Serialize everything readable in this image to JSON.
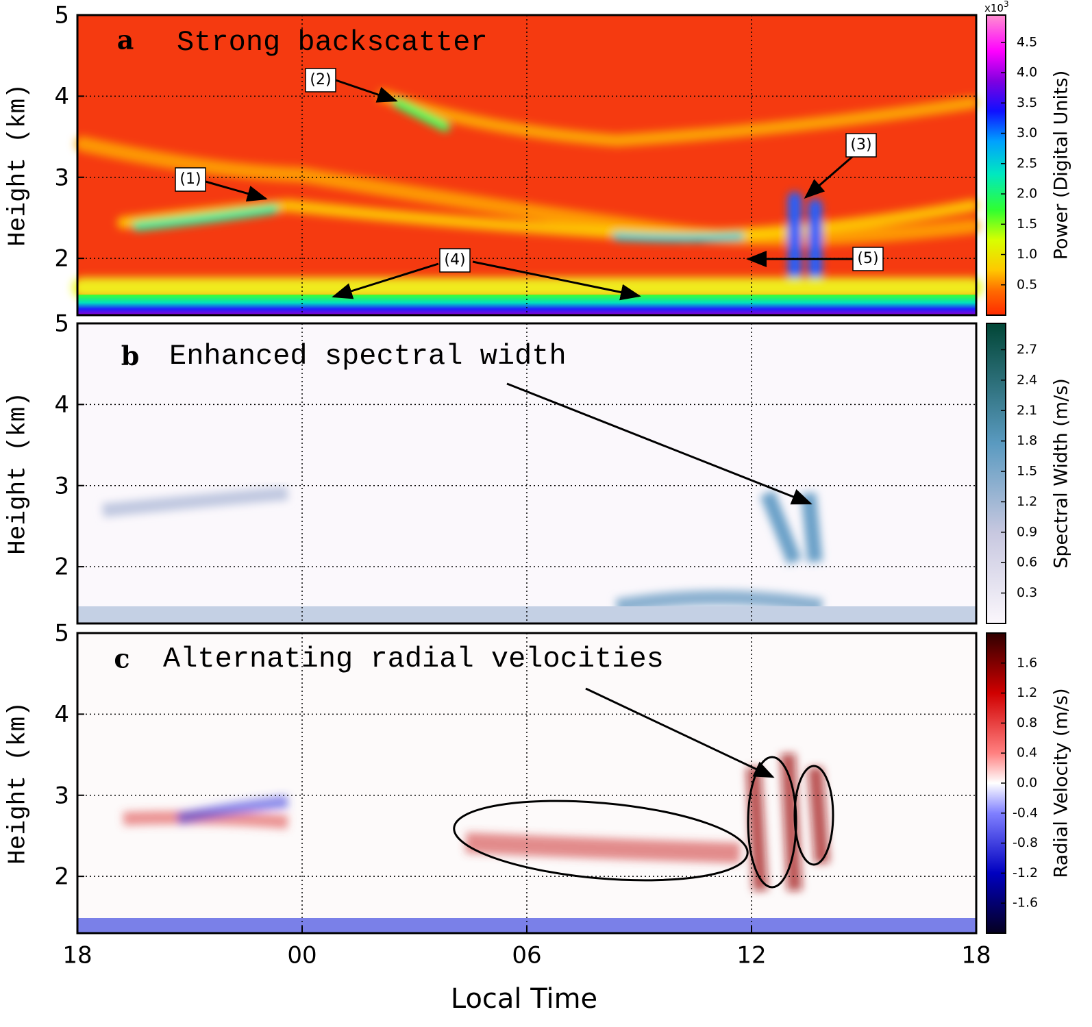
{
  "chart_data": [
    {
      "type": "heatmap",
      "panel": "a",
      "title": "Strong backscatter",
      "y_label": "Height (km)",
      "ylim": [
        1.3,
        5
      ],
      "yticks": [
        2,
        3,
        4,
        5
      ],
      "grid": true,
      "colorbar": {
        "label": "Power (Digital Units)",
        "multiplier": "x10",
        "multiplier_exponent": "3",
        "clim": [
          0,
          4.95
        ],
        "ticks": [
          0.5,
          {
            "value": 1,
            "label": "1.0"
          },
          1.5,
          {
            "value": 2,
            "label": "2.0"
          },
          2.5,
          {
            "value": 3,
            "label": "3.0"
          },
          3.5,
          {
            "value": 4,
            "label": "4.0"
          },
          4.5
        ]
      },
      "annotations": [
        "(1)",
        "(2)",
        "(3)",
        "(4)",
        "(5)"
      ]
    },
    {
      "type": "heatmap",
      "panel": "b",
      "title": "Enhanced spectral width",
      "y_label": "Height (km)",
      "ylim": [
        1.3,
        5
      ],
      "yticks": [
        2,
        3,
        4,
        5
      ],
      "grid": true,
      "colorbar": {
        "label": "Spectral Width (m/s)",
        "clim": [
          0,
          2.96
        ],
        "ticks": [
          0.3,
          0.6,
          0.9,
          1.2,
          1.5,
          1.8,
          2.1,
          2.4,
          2.7
        ]
      }
    },
    {
      "type": "heatmap",
      "panel": "c",
      "title": "Alternating radial velocities",
      "y_label": "Height (km)",
      "x_label": "Local Time",
      "xlim": [
        0,
        24
      ],
      "xticks": [
        {
          "value": 0,
          "label": "18"
        },
        {
          "value": 6,
          "label": "00"
        },
        {
          "value": 12,
          "label": "06"
        },
        {
          "value": 18,
          "label": "12"
        },
        {
          "value": 24,
          "label": "18"
        }
      ],
      "ylim": [
        1.3,
        5
      ],
      "yticks": [
        2,
        3,
        4,
        5
      ],
      "grid": true,
      "colorbar": {
        "label": "Radial Velocity  (m/s)",
        "clim": [
          -2,
          2
        ],
        "ticks": [
          -1.6,
          -1.2,
          -0.8,
          -0.4,
          {
            "value": 0,
            "label": "0.0"
          },
          0.4,
          0.8,
          1.2,
          1.6
        ]
      }
    }
  ]
}
